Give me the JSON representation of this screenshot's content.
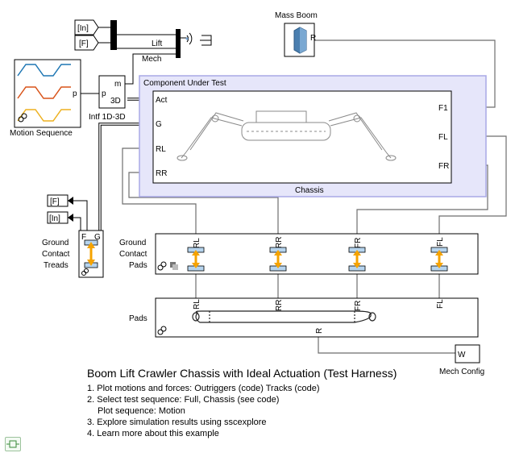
{
  "blocks": {
    "motion_sequence": {
      "label": "Motion Sequence",
      "port_p": "p"
    },
    "intf": {
      "label": "Intf 1D-3D",
      "port_m": "m",
      "port_p": "p",
      "port_3d": "3D"
    },
    "goto_in_top": "[In]",
    "goto_f_top": "[F]",
    "goto_f_left": "[F]",
    "goto_in_left": "[In]",
    "mass_boom": {
      "label": "Mass Boom",
      "port": "R"
    },
    "component_area": "Component Under Test",
    "chassis": {
      "label": "Chassis",
      "ports_left": [
        "Act",
        "G",
        "RL",
        "RR"
      ],
      "ports_right": [
        "F1",
        "FL",
        "FR"
      ]
    },
    "ground_contact_treads": {
      "label_lines": [
        "Ground",
        "Contact",
        "Treads"
      ],
      "ports": [
        "F",
        "G"
      ]
    },
    "ground_contact_pads": {
      "label_lines": [
        "Ground",
        "Contact",
        "Pads"
      ],
      "ports": [
        "RL",
        "RR",
        "FR",
        "FL"
      ]
    },
    "pads": {
      "label": "Pads",
      "ports": [
        "RL",
        "RR",
        "FR",
        "FL"
      ],
      "port_bottom": "R"
    },
    "mech_config": {
      "label": "Mech Config",
      "port": "W"
    },
    "signal_lift": "Lift",
    "signal_mech": "Mech"
  },
  "notes": {
    "title": "Boom Lift Crawler Chassis with Ideal Actuation (Test Harness)",
    "items": [
      "1. Plot motions and forces: Outriggers (code) Tracks (code)",
      "2. Select test sequence: Full, Chassis (see code)",
      "Plot sequence: Motion",
      "3. Explore simulation results using sscexplore",
      "4. Learn more about this example"
    ]
  },
  "colors": {
    "subsystem_fill": "#e6e6fa",
    "subsystem_border": "#a8a8e6",
    "wave_blue": "#1f77b4",
    "wave_orange": "#d95319",
    "wave_yellow": "#edb120",
    "arrow_orange": "#f5a300",
    "pad_blue": "#b6d4ee"
  }
}
